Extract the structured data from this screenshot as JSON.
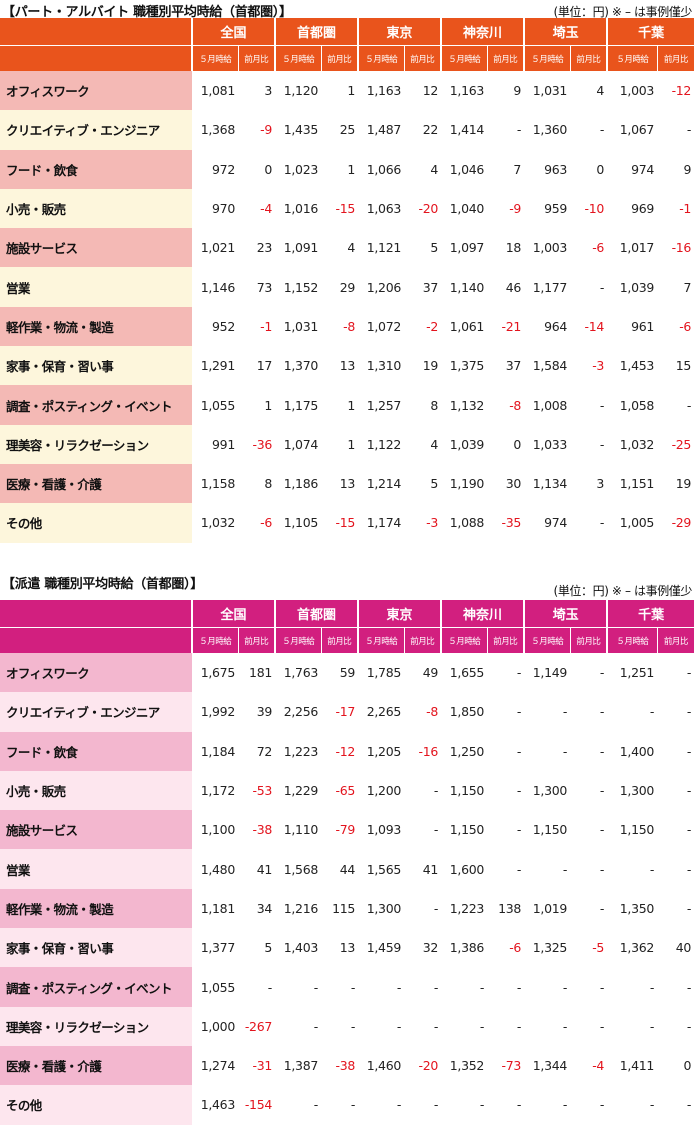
{
  "part_section": {
    "title": "【パート・アルバイト 職種別平均時給（首都圏）】",
    "unit_note": "(単位：円) ※ – は事例僅少",
    "regions": [
      "全国",
      "首都圏",
      "東京",
      "神奈川",
      "埼玉",
      "千葉"
    ],
    "sub_headers": [
      "５月時給",
      "前月比"
    ],
    "rows": [
      {
        "label": "オフィスワーク",
        "cells": [
          "1,081",
          "3",
          "1,120",
          "1",
          "1,163",
          "12",
          "1,163",
          "9",
          "1,031",
          "4",
          "1,003",
          "-12"
        ]
      },
      {
        "label": "クリエイティブ・エンジニア",
        "cells": [
          "1,368",
          "-9",
          "1,435",
          "25",
          "1,487",
          "22",
          "1,414",
          "-",
          "1,360",
          "-",
          "1,067",
          "-"
        ]
      },
      {
        "label": "フード・飲食",
        "cells": [
          "972",
          "0",
          "1,023",
          "1",
          "1,066",
          "4",
          "1,046",
          "7",
          "963",
          "0",
          "974",
          "9"
        ]
      },
      {
        "label": "小売・販売",
        "cells": [
          "970",
          "-4",
          "1,016",
          "-15",
          "1,063",
          "-20",
          "1,040",
          "-9",
          "959",
          "-10",
          "969",
          "-1"
        ]
      },
      {
        "label": "施設サービス",
        "cells": [
          "1,021",
          "23",
          "1,091",
          "4",
          "1,121",
          "5",
          "1,097",
          "18",
          "1,003",
          "-6",
          "1,017",
          "-16"
        ]
      },
      {
        "label": "営業",
        "cells": [
          "1,146",
          "73",
          "1,152",
          "29",
          "1,206",
          "37",
          "1,140",
          "46",
          "1,177",
          "-",
          "1,039",
          "7"
        ]
      },
      {
        "label": "軽作業・物流・製造",
        "cells": [
          "952",
          "-1",
          "1,031",
          "-8",
          "1,072",
          "-2",
          "1,061",
          "-21",
          "964",
          "-14",
          "961",
          "-6"
        ]
      },
      {
        "label": "家事・保育・習い事",
        "cells": [
          "1,291",
          "17",
          "1,370",
          "13",
          "1,310",
          "19",
          "1,375",
          "37",
          "1,584",
          "-3",
          "1,453",
          "15"
        ]
      },
      {
        "label": "調査・ポスティング・イベント",
        "cells": [
          "1,055",
          "1",
          "1,175",
          "1",
          "1,257",
          "8",
          "1,132",
          "-8",
          "1,008",
          "-",
          "1,058",
          "-"
        ]
      },
      {
        "label": "理美容・リラクゼーション",
        "cells": [
          "991",
          "-36",
          "1,074",
          "1",
          "1,122",
          "4",
          "1,039",
          "0",
          "1,033",
          "-",
          "1,032",
          "-25"
        ]
      },
      {
        "label": "医療・看護・介護",
        "cells": [
          "1,158",
          "8",
          "1,186",
          "13",
          "1,214",
          "5",
          "1,190",
          "30",
          "1,134",
          "3",
          "1,151",
          "19"
        ]
      },
      {
        "label": "その他",
        "cells": [
          "1,032",
          "-6",
          "1,105",
          "-15",
          "1,174",
          "-3",
          "1,088",
          "-35",
          "974",
          "-",
          "1,005",
          "-29"
        ]
      }
    ]
  },
  "haken_section": {
    "title": "【派遣 職種別平均時給（首都圏）】",
    "unit_note": "(単位：円) ※ – は事例僅少",
    "regions": [
      "全国",
      "首都圏",
      "東京",
      "神奈川",
      "埼玉",
      "千葉"
    ],
    "sub_headers": [
      "５月時給",
      "前月比"
    ],
    "rows": [
      {
        "label": "オフィスワーク",
        "cells": [
          "1,675",
          "181",
          "1,763",
          "59",
          "1,785",
          "49",
          "1,655",
          "-",
          "1,149",
          "-",
          "1,251",
          "-"
        ]
      },
      {
        "label": "クリエイティブ・エンジニア",
        "cells": [
          "1,992",
          "39",
          "2,256",
          "-17",
          "2,265",
          "-8",
          "1,850",
          "-",
          "-",
          "-",
          "-",
          "-"
        ]
      },
      {
        "label": "フード・飲食",
        "cells": [
          "1,184",
          "72",
          "1,223",
          "-12",
          "1,205",
          "-16",
          "1,250",
          "-",
          "-",
          "-",
          "1,400",
          "-"
        ]
      },
      {
        "label": "小売・販売",
        "cells": [
          "1,172",
          "-53",
          "1,229",
          "-65",
          "1,200",
          "-",
          "1,150",
          "-",
          "1,300",
          "-",
          "1,300",
          "-"
        ]
      },
      {
        "label": "施設サービス",
        "cells": [
          "1,100",
          "-38",
          "1,110",
          "-79",
          "1,093",
          "-",
          "1,150",
          "-",
          "1,150",
          "-",
          "1,150",
          "-"
        ]
      },
      {
        "label": "営業",
        "cells": [
          "1,480",
          "41",
          "1,568",
          "44",
          "1,565",
          "41",
          "1,600",
          "-",
          "-",
          "-",
          "-",
          "-"
        ]
      },
      {
        "label": "軽作業・物流・製造",
        "cells": [
          "1,181",
          "34",
          "1,216",
          "115",
          "1,300",
          "-",
          "1,223",
          "138",
          "1,019",
          "-",
          "1,350",
          "-"
        ]
      },
      {
        "label": "家事・保育・習い事",
        "cells": [
          "1,377",
          "5",
          "1,403",
          "13",
          "1,459",
          "32",
          "1,386",
          "-6",
          "1,325",
          "-5",
          "1,362",
          "40"
        ]
      },
      {
        "label": "調査・ポスティング・イベント",
        "cells": [
          "1,055",
          "-",
          "-",
          "-",
          "-",
          "-",
          "-",
          "-",
          "-",
          "-",
          "-",
          "-"
        ]
      },
      {
        "label": "理美容・リラクゼーション",
        "cells": [
          "1,000",
          "-267",
          "-",
          "-",
          "-",
          "-",
          "-",
          "-",
          "-",
          "-",
          "-",
          "-"
        ]
      },
      {
        "label": "医療・看護・介護",
        "cells": [
          "1,274",
          "-31",
          "1,387",
          "-38",
          "1,460",
          "-20",
          "1,352",
          "-73",
          "1,344",
          "-4",
          "1,411",
          "0"
        ]
      },
      {
        "label": "その他",
        "cells": [
          "1,463",
          "-154",
          "-",
          "-",
          "-",
          "-",
          "-",
          "-",
          "-",
          "-",
          "-",
          "-"
        ]
      }
    ]
  },
  "colors": {
    "part_header": "#e9541c",
    "haken_header": "#d21f7f",
    "negative": "#e3141e"
  }
}
